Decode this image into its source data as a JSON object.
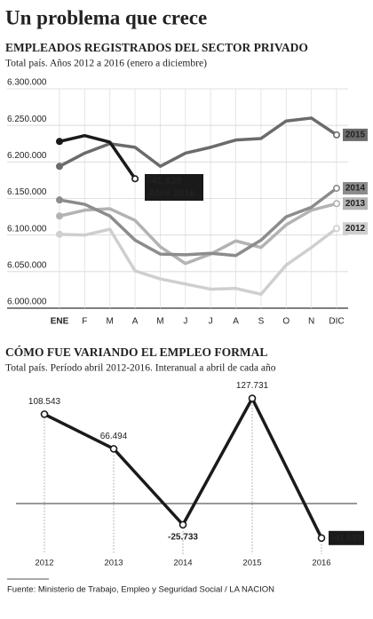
{
  "title": "Un problema que crece",
  "source": "Fuente:  Ministerio de Trabajo, Empleo y Seguridad Social / LA NACION",
  "chart_data": [
    {
      "type": "line",
      "title": "EMPLEADOS REGISTRADOS DEL SECTOR PRIVADO",
      "subtitle": "Total país. Años 2012 a 2016 (enero a diciembre)",
      "categories": [
        "ENE",
        "F",
        "M",
        "A",
        "M",
        "J",
        "J",
        "A",
        "S",
        "O",
        "N",
        "DIC"
      ],
      "ylim": [
        6000000,
        6300000
      ],
      "yticks": [
        {
          "value": 6000000,
          "label": "6.000.000"
        },
        {
          "value": 6050000,
          "label": "6.050.000"
        },
        {
          "value": 6100000,
          "label": "6.100.000"
        },
        {
          "value": 6150000,
          "label": "6.150.000"
        },
        {
          "value": 6200000,
          "label": "6.200.000"
        },
        {
          "value": 6250000,
          "label": "6.250.000"
        },
        {
          "value": 6300000,
          "label": "6.300.000"
        }
      ],
      "grid": true,
      "annotation": [
        "-41.839",
        "Abril 2016"
      ],
      "series": [
        {
          "name": "2012",
          "color": "#cfcfcf",
          "values": [
            6101000,
            6100000,
            6108000,
            6051000,
            6040000,
            6033000,
            6026000,
            6027000,
            6019000,
            6059000,
            6083000,
            6109000
          ]
        },
        {
          "name": "2013",
          "color": "#b3b3b3",
          "values": [
            6126000,
            6134000,
            6136000,
            6120000,
            6084000,
            6061000,
            6074000,
            6092000,
            6083000,
            6114000,
            6134000,
            6143000
          ]
        },
        {
          "name": "2014",
          "color": "#8c8c8c",
          "values": [
            6148000,
            6142000,
            6126000,
            6093000,
            6074000,
            6073000,
            6075000,
            6072000,
            6093000,
            6125000,
            6138000,
            6164000
          ]
        },
        {
          "name": "2015",
          "color": "#6b6b6b",
          "values": [
            6194000,
            6212000,
            6225000,
            6220000,
            6194000,
            6212000,
            6220000,
            6230000,
            6232000,
            6256000,
            6260000,
            6237000
          ]
        },
        {
          "color": "#1a1a1a",
          "values": [
            6228000,
            6236000,
            6227000,
            6177000,
            null,
            null,
            null,
            null,
            null,
            null,
            null,
            null
          ]
        }
      ]
    },
    {
      "type": "line",
      "title": "CÓMO FUE VARIANDO EL EMPLEO FORMAL",
      "subtitle": "Total país. Período abril 2012-2016. Interanual a abril de cada año",
      "categories": [
        "2012",
        "2013",
        "2014",
        "2015",
        "2016"
      ],
      "ylim": [
        -55000,
        137000
      ],
      "series": [
        {
          "color": "#1a1a1a",
          "values": [
            108543,
            66494,
            -25733,
            127731,
            -41839
          ],
          "value_labels": [
            "108.543",
            "66.494",
            "-25.733",
            "127.731",
            "-41.839"
          ]
        }
      ]
    }
  ]
}
